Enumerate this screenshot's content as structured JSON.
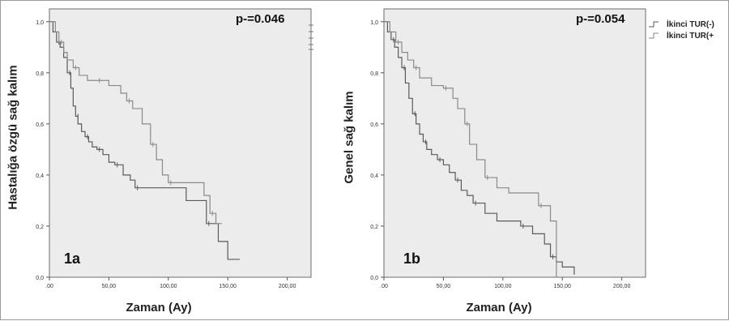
{
  "chart_data": [
    {
      "type": "line",
      "panel_label": "1a",
      "annotation": "p-=0.046",
      "xlabel": "Zaman (Ay)",
      "ylabel": "Hastalığa özgü sağ kalım",
      "xlim": [
        0,
        220
      ],
      "ylim": [
        0,
        1.05
      ],
      "xticks": [
        ".00",
        "50,00",
        "100,00",
        "150,00",
        "200,00"
      ],
      "yticks": [
        "0,0",
        "0,2",
        "0,4",
        "0,6",
        "0,8",
        "1,0"
      ],
      "series": [
        {
          "name": "İkinci TUR(-)",
          "color": "#5a5a5a",
          "x": [
            0,
            3,
            6,
            9,
            12,
            15,
            18,
            20,
            22,
            24,
            27,
            30,
            33,
            36,
            40,
            45,
            50,
            55,
            62,
            68,
            72,
            95,
            115,
            132,
            142,
            150,
            160
          ],
          "y": [
            1.0,
            0.96,
            0.92,
            0.9,
            0.86,
            0.8,
            0.74,
            0.67,
            0.63,
            0.6,
            0.57,
            0.55,
            0.53,
            0.51,
            0.5,
            0.48,
            0.45,
            0.44,
            0.4,
            0.38,
            0.35,
            0.35,
            0.3,
            0.21,
            0.14,
            0.07,
            0.07
          ]
        },
        {
          "name": "İkinci TUR(+)",
          "color": "#8a8a8a",
          "x": [
            0,
            5,
            8,
            12,
            15,
            20,
            25,
            32,
            40,
            50,
            60,
            65,
            70,
            78,
            85,
            90,
            95,
            100,
            110,
            130,
            135,
            140,
            145
          ],
          "y": [
            1.0,
            0.96,
            0.92,
            0.88,
            0.85,
            0.82,
            0.79,
            0.77,
            0.77,
            0.75,
            0.72,
            0.69,
            0.66,
            0.6,
            0.52,
            0.46,
            0.4,
            0.37,
            0.37,
            0.32,
            0.25,
            0.21,
            0.21
          ]
        }
      ]
    },
    {
      "type": "line",
      "panel_label": "1b",
      "annotation": "p-=0.054",
      "xlabel": "Zaman (Ay)",
      "ylabel": "Genel sağ kalım",
      "xlim": [
        0,
        220
      ],
      "ylim": [
        0,
        1.05
      ],
      "xticks": [
        ".00",
        "50,00",
        "100,00",
        "150,00",
        "200,00"
      ],
      "yticks": [
        "0,0",
        "0,2",
        "0,4",
        "0,6",
        "0,8",
        "1,0"
      ],
      "series": [
        {
          "name": "İkinci TUR(-)",
          "color": "#5a5a5a",
          "x": [
            0,
            3,
            6,
            9,
            12,
            15,
            18,
            21,
            24,
            27,
            30,
            33,
            36,
            40,
            45,
            50,
            55,
            60,
            65,
            70,
            75,
            85,
            95,
            115,
            125,
            135,
            140,
            145,
            150,
            160
          ],
          "y": [
            1.0,
            0.96,
            0.93,
            0.9,
            0.86,
            0.82,
            0.76,
            0.7,
            0.64,
            0.6,
            0.56,
            0.53,
            0.5,
            0.48,
            0.46,
            0.44,
            0.41,
            0.38,
            0.34,
            0.32,
            0.29,
            0.25,
            0.22,
            0.2,
            0.17,
            0.13,
            0.08,
            0.06,
            0.04,
            0.01
          ]
        },
        {
          "name": "İkinci TUR(+)",
          "color": "#8a8a8a",
          "x": [
            0,
            5,
            10,
            15,
            20,
            25,
            30,
            40,
            50,
            58,
            62,
            68,
            72,
            78,
            85,
            95,
            105,
            130,
            140,
            145
          ],
          "y": [
            1.0,
            0.96,
            0.92,
            0.88,
            0.85,
            0.82,
            0.78,
            0.75,
            0.74,
            0.7,
            0.66,
            0.6,
            0.52,
            0.46,
            0.39,
            0.35,
            0.33,
            0.28,
            0.22,
            0.0
          ]
        }
      ]
    }
  ],
  "legend": [
    {
      "label": "İkinci TUR(-)"
    },
    {
      "label": "İkinci TUR(+"
    }
  ]
}
